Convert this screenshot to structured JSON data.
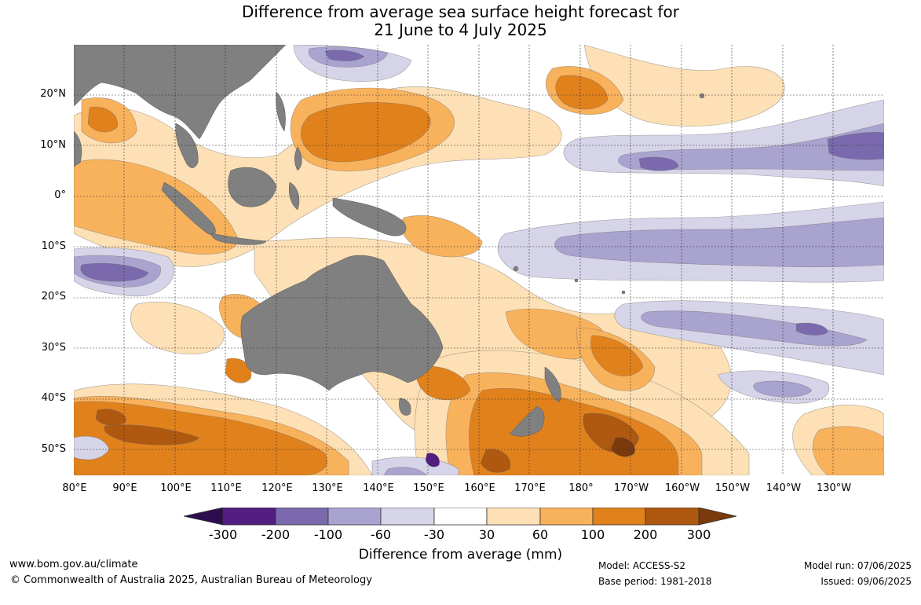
{
  "title": {
    "line1": "Difference from average sea surface height forecast for",
    "line2": "21 June to 4 July 2025"
  },
  "latitude_labels": [
    "20°N",
    "10°N",
    "0°",
    "10°S",
    "20°S",
    "30°S",
    "40°S",
    "50°S"
  ],
  "longitude_labels": [
    "80°E",
    "90°E",
    "100°E",
    "110°E",
    "120°E",
    "130°E",
    "140°E",
    "150°E",
    "160°E",
    "170°E",
    "180°",
    "170°W",
    "160°W",
    "150°W",
    "140°W",
    "130°W"
  ],
  "colorbar": {
    "title": "Difference from average (mm)",
    "tick_labels": [
      "-300",
      "-200",
      "-100",
      "-60",
      "-30",
      "30",
      "60",
      "100",
      "200",
      "300"
    ],
    "colors": {
      "below_-300": "#2e0d4f",
      "-300_-200": "#521e82",
      "-200_-100": "#7a6aad",
      "-100_-60": "#a9a3cf",
      "-60_-30": "#d6d4e8",
      "-30_30": "#ffffff",
      "30_60": "#fde0b5",
      "60_100": "#f9b25c",
      "100_200": "#e1811c",
      "200_300": "#ae5810",
      "above_300": "#7a3a0b"
    }
  },
  "land_color": "#808080",
  "footer": {
    "website": "www.bom.gov.au/climate",
    "copyright": "© Commonwealth of Australia 2025, Australian Bureau of Meteorology",
    "model": "Model: ACCESS-S2",
    "base_period": "Base period: 1981-2018",
    "model_run": "Model run: 07/06/2025",
    "issued": "Issued: 09/06/2025"
  }
}
